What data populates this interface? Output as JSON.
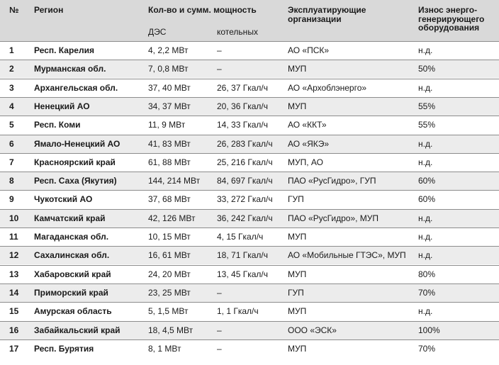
{
  "headers": {
    "num": "№",
    "region": "Регион",
    "capacity": "Кол-во и сумм. мощность",
    "capacity_sub_dgs": "ДЭС",
    "capacity_sub_kot": "котельных",
    "org": "Эксплуатирующие организации",
    "wear": "Износ энерго- генерирующего оборудования"
  },
  "rows": [
    {
      "num": "1",
      "region": "Респ. Карелия",
      "dgs": "4, 2,2 МВт",
      "kot": "–",
      "org": "АО «ПСК»",
      "wear": "н.д."
    },
    {
      "num": "2",
      "region": "Мурманская обл.",
      "dgs": "7, 0,8 МВт",
      "kot": "–",
      "org": "МУП",
      "wear": "50%"
    },
    {
      "num": "3",
      "region": "Архангельская обл.",
      "dgs": "37, 40 МВт",
      "kot": "26, 37 Гкал/ч",
      "org": "АО «Архоблэнерго»",
      "wear": "н.д."
    },
    {
      "num": "4",
      "region": "Ненецкий АО",
      "dgs": "34, 37 МВт",
      "kot": "20, 36 Гкал/ч",
      "org": "МУП",
      "wear": "55%"
    },
    {
      "num": "5",
      "region": "Респ. Коми",
      "dgs": "11, 9 МВт",
      "kot": "14, 33 Гкал/ч",
      "org": "АО «ККТ»",
      "wear": "55%"
    },
    {
      "num": "6",
      "region": "Ямало-Ненецкий АО",
      "dgs": "41, 83 МВт",
      "kot": "26, 283 Гкал/ч",
      "org": "АО «ЯКЭ»",
      "wear": "н.д."
    },
    {
      "num": "7",
      "region": "Красноярский край",
      "dgs": "61, 88 МВт",
      "kot": "25, 216 Гкал/ч",
      "org": "МУП, АО",
      "wear": "н.д."
    },
    {
      "num": "8",
      "region": "Респ. Саха (Якутия)",
      "dgs": "144, 214 МВт",
      "kot": "84, 697 Гкал/ч",
      "org": "ПАО «РусГидро», ГУП",
      "wear": "60%"
    },
    {
      "num": "9",
      "region": "Чукотский АО",
      "dgs": "37, 68 МВт",
      "kot": "33, 272 Гкал/ч",
      "org": "ГУП",
      "wear": "60%"
    },
    {
      "num": "10",
      "region": "Камчатский край",
      "dgs": "42, 126 МВт",
      "kot": "36, 242 Гкал/ч",
      "org": "ПАО «РусГидро», МУП",
      "wear": "н.д."
    },
    {
      "num": "11",
      "region": "Магаданская обл.",
      "dgs": "10, 15 МВт",
      "kot": "4, 15 Гкал/ч",
      "org": "МУП",
      "wear": "н.д."
    },
    {
      "num": "12",
      "region": "Сахалинская обл.",
      "dgs": "16, 61 МВт",
      "kot": "18, 71 Гкал/ч",
      "org": "АО «Мобильные ГТЭС», МУП",
      "wear": "н.д."
    },
    {
      "num": "13",
      "region": "Хабаровский край",
      "dgs": "24, 20 МВт",
      "kot": "13, 45 Гкал/ч",
      "org": "МУП",
      "wear": "80%"
    },
    {
      "num": "14",
      "region": "Приморский край",
      "dgs": "23, 25 МВт",
      "kot": "–",
      "org": "ГУП",
      "wear": "70%"
    },
    {
      "num": "15",
      "region": "Амурская область",
      "dgs": "5, 1,5 МВт",
      "kot": "1, 1 Гкал/ч",
      "org": "МУП",
      "wear": "н.д."
    },
    {
      "num": "16",
      "region": "Забайкальский край",
      "dgs": "18, 4,5 МВт",
      "kot": "–",
      "org": "ООО «ЭСК»",
      "wear": "100%"
    },
    {
      "num": "17",
      "region": "Респ. Бурятия",
      "dgs": "8, 1 МВт",
      "kot": "–",
      "org": "МУП",
      "wear": "70%"
    }
  ]
}
